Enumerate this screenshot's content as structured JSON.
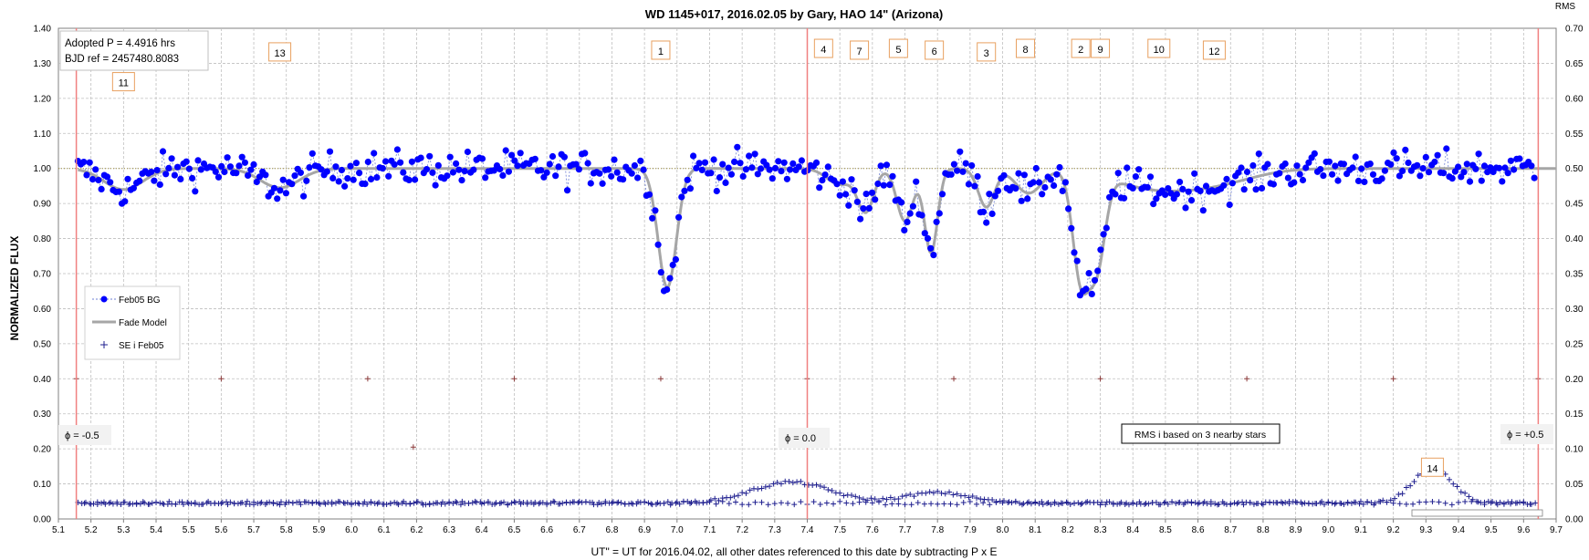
{
  "chart_data": {
    "type": "scatter",
    "title": "WD 1145+017, 2016.02.05  by Gary, HAO 14\" (Arizona)",
    "xlabel": "UT\" = UT for 2016.04.02, all other dates referenced to this date by subtracting P x E",
    "ylabel": "NORMALIZED FLUX",
    "y2label": "RMS",
    "xlim": [
      5.1,
      9.7
    ],
    "ylim": [
      0.0,
      1.4
    ],
    "y2lim": [
      0.0,
      0.7
    ],
    "xticks": [
      "5.1",
      "5.2",
      "5.3",
      "5.4",
      "5.5",
      "5.6",
      "5.7",
      "5.8",
      "5.9",
      "6.0",
      "6.1",
      "6.2",
      "6.3",
      "6.4",
      "6.5",
      "6.6",
      "6.7",
      "6.8",
      "6.9",
      "7.0",
      "7.1",
      "7.2",
      "7.3",
      "7.4",
      "7.5",
      "7.6",
      "7.7",
      "7.8",
      "7.9",
      "8.0",
      "8.1",
      "8.2",
      "8.3",
      "8.4",
      "8.5",
      "8.6",
      "8.7",
      "8.8",
      "8.9",
      "9.0",
      "9.1",
      "9.2",
      "9.3",
      "9.4",
      "9.5",
      "9.6",
      "9.7"
    ],
    "yticks": [
      "0.00",
      "0.10",
      "0.20",
      "0.30",
      "0.40",
      "0.50",
      "0.60",
      "0.70",
      "0.80",
      "0.90",
      "1.00",
      "1.10",
      "1.20",
      "1.30",
      "1.40"
    ],
    "y2ticks": [
      "0.00",
      "0.05",
      "0.10",
      "0.15",
      "0.20",
      "0.25",
      "0.30",
      "0.35",
      "0.40",
      "0.45",
      "0.50",
      "0.55",
      "0.60",
      "0.65",
      "0.70"
    ],
    "grid": true,
    "legend_position": "left",
    "info_box": [
      "Adopted P = 4.4916 hrs",
      "BJD ref = 2457480.8083"
    ],
    "rms_note": "RMS i based on 3 nearby stars",
    "phase_lines": [
      {
        "x": 5.155,
        "label": "ϕ = -0.5"
      },
      {
        "x": 7.4,
        "label": "ϕ = 0.0"
      },
      {
        "x": 9.645,
        "label": "ϕ = +0.5"
      }
    ],
    "component_labels": [
      {
        "label": "13",
        "x": 5.78,
        "y": 1.33
      },
      {
        "label": "11",
        "x": 5.3,
        "y": 1.245
      },
      {
        "label": "1",
        "x": 6.95,
        "y": 1.335
      },
      {
        "label": "4",
        "x": 7.45,
        "y": 1.34
      },
      {
        "label": "7",
        "x": 7.56,
        "y": 1.335
      },
      {
        "label": "5",
        "x": 7.68,
        "y": 1.34
      },
      {
        "label": "6",
        "x": 7.79,
        "y": 1.335
      },
      {
        "label": "3",
        "x": 7.95,
        "y": 1.33
      },
      {
        "label": "8",
        "x": 8.07,
        "y": 1.34
      },
      {
        "label": "2",
        "x": 8.24,
        "y": 1.34
      },
      {
        "label": "9",
        "x": 8.3,
        "y": 1.34
      },
      {
        "label": "10",
        "x": 8.48,
        "y": 1.34
      },
      {
        "label": "12",
        "x": 8.65,
        "y": 1.335
      },
      {
        "label": "14",
        "x": 9.32,
        "y": 0.145
      }
    ],
    "series": [
      {
        "name": "Feb05 BG",
        "style": "dashed-dots",
        "color": "#0000ff",
        "axis": "left"
      },
      {
        "name": "Fade Model",
        "style": "line",
        "color": "#a6a6a6",
        "axis": "left"
      },
      {
        "name": "SE i Feb05",
        "style": "plus",
        "color": "#1f1f8f",
        "axis": "left"
      },
      {
        "name": "RMS i",
        "style": "plus",
        "color": "#1f1f8f",
        "axis": "right"
      }
    ],
    "model_dips": [
      {
        "x": 5.3,
        "depth": 0.06,
        "width": 0.06
      },
      {
        "x": 5.78,
        "depth": 0.055,
        "width": 0.06
      },
      {
        "x": 6.97,
        "depth": 0.34,
        "width": 0.028
      },
      {
        "x": 7.5,
        "depth": 0.045,
        "width": 0.04
      },
      {
        "x": 7.58,
        "depth": 0.12,
        "width": 0.025
      },
      {
        "x": 7.7,
        "depth": 0.15,
        "width": 0.025
      },
      {
        "x": 7.78,
        "depth": 0.24,
        "width": 0.02
      },
      {
        "x": 7.95,
        "depth": 0.11,
        "width": 0.025
      },
      {
        "x": 8.08,
        "depth": 0.07,
        "width": 0.04
      },
      {
        "x": 8.24,
        "depth": 0.3,
        "width": 0.025
      },
      {
        "x": 8.29,
        "depth": 0.25,
        "width": 0.025
      },
      {
        "x": 8.45,
        "depth": 0.05,
        "width": 0.12
      },
      {
        "x": 8.65,
        "depth": 0.04,
        "width": 0.12
      }
    ],
    "flux_noise_amplitude": 0.045,
    "flux_sample_step": 0.009,
    "se_points": [
      [
        5.155,
        0.4
      ],
      [
        5.6,
        0.4
      ],
      [
        6.05,
        0.4
      ],
      [
        6.5,
        0.4
      ],
      [
        6.95,
        0.4
      ],
      [
        7.4,
        0.4
      ],
      [
        7.85,
        0.4
      ],
      [
        8.3,
        0.4
      ],
      [
        8.75,
        0.4
      ],
      [
        9.2,
        0.4
      ],
      [
        9.645,
        0.4
      ],
      [
        6.19,
        0.205
      ]
    ],
    "rms_baseline": 0.045,
    "rms_bumps": [
      {
        "x": 7.35,
        "height": 0.06,
        "width": 0.12
      },
      {
        "x": 7.8,
        "height": 0.03,
        "width": 0.1
      },
      {
        "x": 9.32,
        "height": 0.1,
        "width": 0.06
      }
    ]
  }
}
